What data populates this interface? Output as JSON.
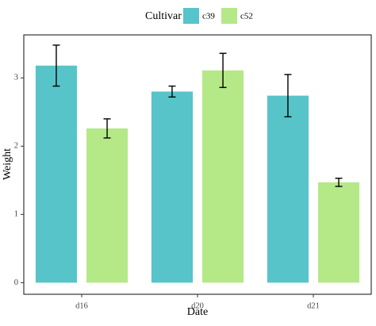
{
  "chart_data": {
    "type": "bar",
    "title": "",
    "xlabel": "Date",
    "ylabel": "Weight",
    "categories": [
      "d16",
      "d20",
      "d21"
    ],
    "yticks": [
      0,
      1,
      2,
      3
    ],
    "ylim": [
      -0.17,
      3.63
    ],
    "grid": false,
    "legend": {
      "title": "Cultivar",
      "position": "top"
    },
    "series": [
      {
        "name": "c39",
        "color": "#57C4C9",
        "values": [
          3.18,
          2.8,
          2.74
        ],
        "error": [
          0.3,
          0.08,
          0.31
        ]
      },
      {
        "name": "c52",
        "color": "#B5E887",
        "values": [
          2.26,
          3.11,
          1.47
        ],
        "error": [
          0.14,
          0.25,
          0.06
        ]
      }
    ]
  }
}
